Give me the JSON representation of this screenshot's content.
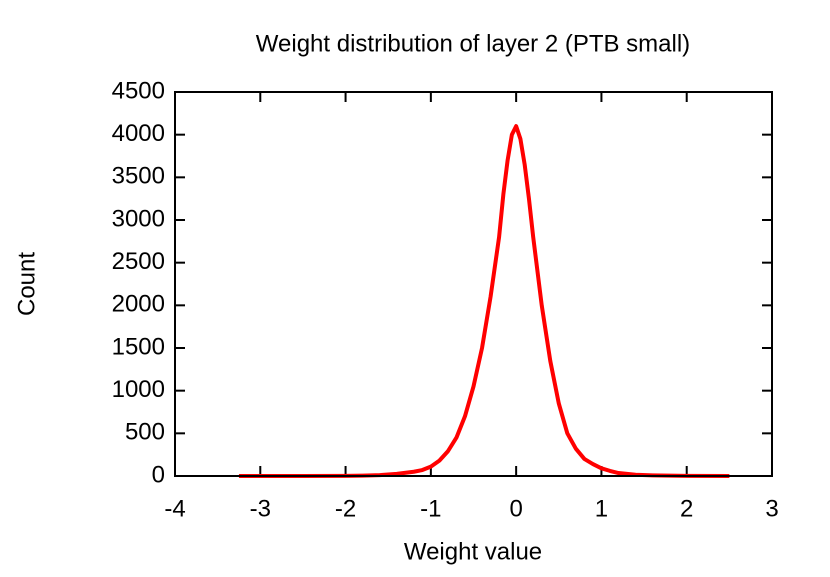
{
  "chart_data": {
    "type": "line",
    "title": "Weight distribution of layer 2 (PTB small)",
    "x_label": "Weight value",
    "y_label": "Count",
    "x": [
      -3.25,
      -3.0,
      -2.5,
      -2.0,
      -1.8,
      -1.6,
      -1.4,
      -1.2,
      -1.1,
      -1.0,
      -0.9,
      -0.8,
      -0.7,
      -0.6,
      -0.5,
      -0.4,
      -0.3,
      -0.2,
      -0.15,
      -0.1,
      -0.05,
      0,
      0.05,
      0.1,
      0.15,
      0.2,
      0.3,
      0.4,
      0.5,
      0.6,
      0.7,
      0.8,
      0.9,
      1.0,
      1.1,
      1.2,
      1.4,
      1.6,
      1.8,
      2.0,
      2.5
    ],
    "values": [
      0,
      0,
      0,
      2,
      5,
      10,
      25,
      50,
      70,
      110,
      180,
      290,
      450,
      700,
      1050,
      1500,
      2100,
      2800,
      3300,
      3700,
      4000,
      4100,
      3950,
      3650,
      3250,
      2800,
      2000,
      1350,
      850,
      500,
      320,
      200,
      140,
      90,
      60,
      35,
      15,
      8,
      4,
      2,
      0
    ],
    "color": "#ff0000",
    "xlim": [
      -4,
      3
    ],
    "xticks": [
      -4,
      -3,
      -2,
      -1,
      0,
      1,
      2,
      3
    ],
    "ylim": [
      0,
      4500
    ],
    "yticks": [
      0,
      500,
      1000,
      1500,
      2000,
      2500,
      3000,
      3500,
      4000,
      4500
    ],
    "grid": false
  }
}
